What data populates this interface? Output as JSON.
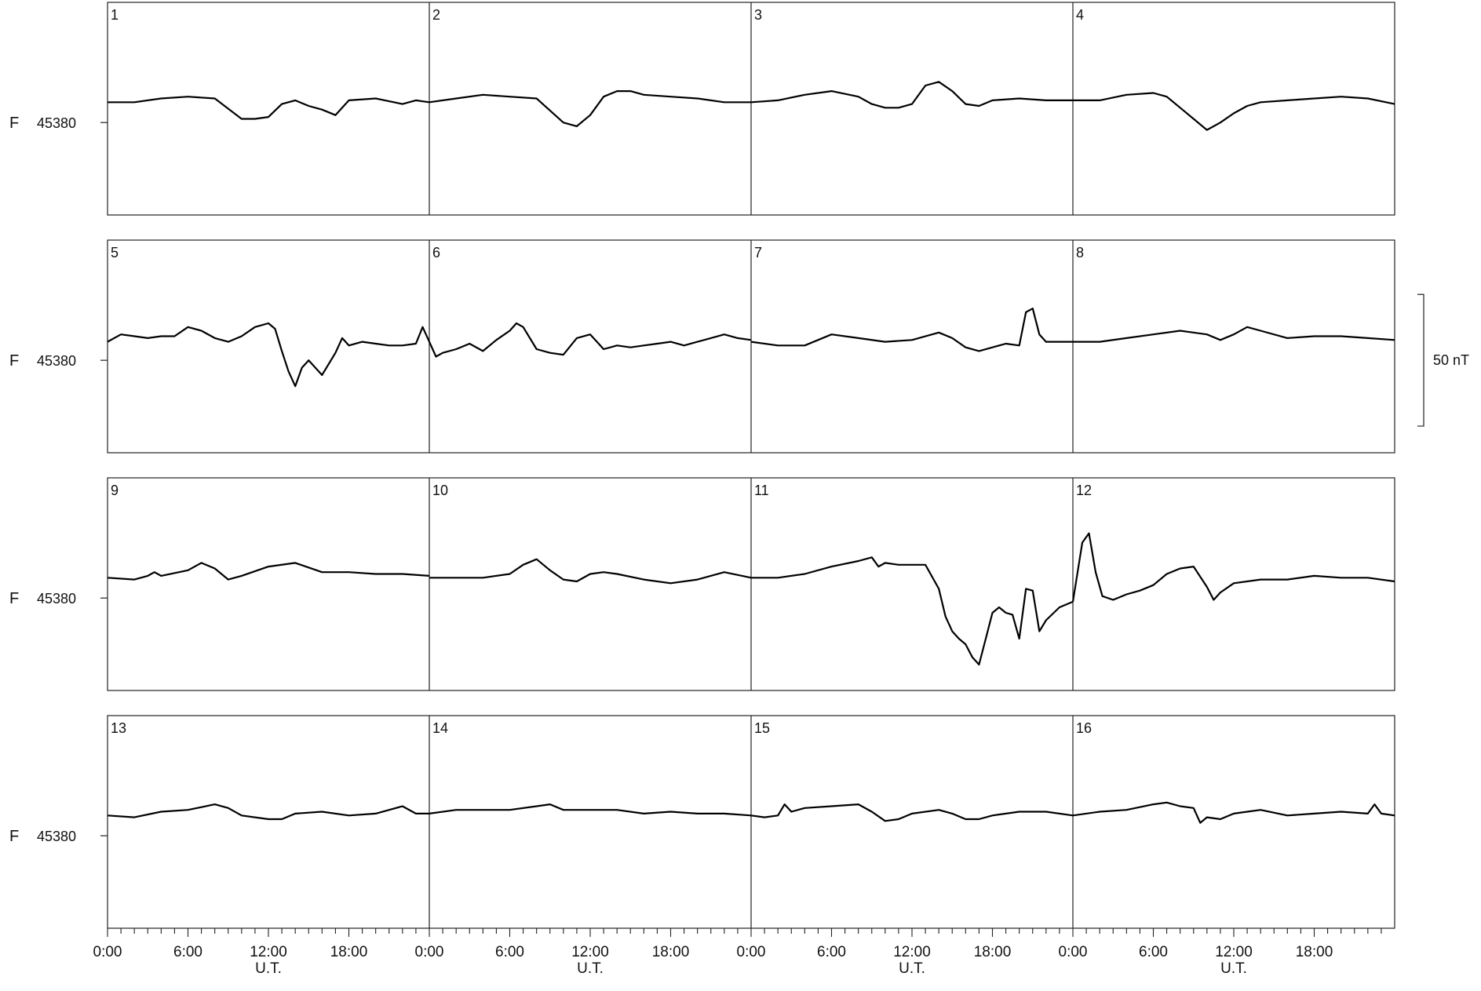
{
  "chart_data": {
    "type": "line",
    "layout": "small-multiples, 4 rows x 4 day-panels",
    "days_per_row": 4,
    "hours_per_day": 24,
    "row_label_letter": "F",
    "row_reference_value": "45380",
    "reference_value": 45380,
    "y_range_per_row": [
      45330,
      45445
    ],
    "scale_bar_label": "50 nT",
    "scale_bar_nT": 50,
    "x_tick_labels": [
      "0:00",
      "6:00",
      "12:00",
      "18:00"
    ],
    "x_axis_label": "U.T.",
    "minor_ticks_per_day": 24,
    "grid": false,
    "days": [
      {
        "label": "1",
        "row": 0,
        "hours": [
          0,
          2,
          4,
          6,
          8,
          10,
          11,
          12,
          13,
          14,
          15,
          16,
          17,
          18,
          20,
          22,
          23,
          24
        ],
        "values": [
          45391,
          45391,
          45393,
          45394,
          45393,
          45382,
          45382,
          45383,
          45390,
          45392,
          45389,
          45387,
          45384,
          45392,
          45393,
          45390,
          45392,
          45391
        ]
      },
      {
        "label": "2",
        "row": 0,
        "hours": [
          0,
          2,
          4,
          6,
          8,
          10,
          11,
          12,
          13,
          14,
          15,
          16,
          18,
          20,
          22,
          24
        ],
        "values": [
          45391,
          45393,
          45395,
          45394,
          45393,
          45380,
          45378,
          45384,
          45394,
          45397,
          45397,
          45395,
          45394,
          45393,
          45391,
          45391
        ]
      },
      {
        "label": "3",
        "row": 0,
        "hours": [
          0,
          2,
          4,
          6,
          8,
          9,
          10,
          11,
          12,
          13,
          14,
          15,
          16,
          17,
          18,
          20,
          22,
          24
        ],
        "values": [
          45391,
          45392,
          45395,
          45397,
          45394,
          45390,
          45388,
          45388,
          45390,
          45400,
          45402,
          45397,
          45390,
          45389,
          45392,
          45393,
          45392,
          45392
        ]
      },
      {
        "label": "4",
        "row": 0,
        "hours": [
          0,
          2,
          4,
          6,
          7,
          8,
          9,
          10,
          11,
          12,
          13,
          14,
          16,
          18,
          20,
          22,
          24
        ],
        "values": [
          45392,
          45392,
          45395,
          45396,
          45394,
          45388,
          45382,
          45376,
          45380,
          45385,
          45389,
          45391,
          45392,
          45393,
          45394,
          45393,
          45390
        ]
      },
      {
        "label": "5",
        "row": 1,
        "hours": [
          0,
          1,
          2,
          3,
          4,
          5,
          6,
          7,
          8,
          9,
          10,
          11,
          12,
          12.5,
          13,
          13.5,
          14,
          14.2,
          14.5,
          15,
          16,
          17,
          17.5,
          18,
          19,
          20,
          21,
          22,
          23,
          23.5,
          24
        ],
        "values": [
          45390,
          45394,
          45393,
          45392,
          45393,
          45393,
          45398,
          45396,
          45392,
          45390,
          45393,
          45398,
          45400,
          45397,
          45385,
          45374,
          45366,
          45370,
          45376,
          45380,
          45372,
          45384,
          45392,
          45388,
          45390,
          45389,
          45388,
          45388,
          45389,
          45398,
          45390
        ]
      },
      {
        "label": "6",
        "row": 1,
        "hours": [
          0,
          0.5,
          1,
          2,
          3,
          4,
          5,
          6,
          6.5,
          7,
          8,
          9,
          10,
          11,
          12,
          13,
          14,
          15,
          16,
          17,
          18,
          19,
          20,
          21,
          22,
          23,
          24
        ],
        "values": [
          45390,
          45382,
          45384,
          45386,
          45389,
          45385,
          45391,
          45396,
          45400,
          45398,
          45386,
          45384,
          45383,
          45392,
          45394,
          45386,
          45388,
          45387,
          45388,
          45389,
          45390,
          45388,
          45390,
          45392,
          45394,
          45392,
          45391
        ]
      },
      {
        "label": "7",
        "row": 1,
        "hours": [
          0,
          2,
          4,
          6,
          8,
          10,
          12,
          14,
          15,
          16,
          17,
          18,
          19,
          20,
          20.5,
          21,
          21.5,
          22,
          24
        ],
        "values": [
          45390,
          45388,
          45388,
          45394,
          45392,
          45390,
          45391,
          45395,
          45392,
          45387,
          45385,
          45387,
          45389,
          45388,
          45406,
          45408,
          45394,
          45390,
          45390
        ]
      },
      {
        "label": "8",
        "row": 1,
        "hours": [
          0,
          2,
          4,
          6,
          8,
          10,
          11,
          12,
          13,
          14,
          16,
          18,
          20,
          22,
          24
        ],
        "values": [
          45390,
          45390,
          45392,
          45394,
          45396,
          45394,
          45391,
          45394,
          45398,
          45396,
          45392,
          45393,
          45393,
          45392,
          45391
        ]
      },
      {
        "label": "9",
        "row": 2,
        "hours": [
          0,
          2,
          3,
          3.5,
          4,
          6,
          7,
          8,
          9,
          10,
          12,
          14,
          16,
          18,
          20,
          22,
          24
        ],
        "values": [
          45391,
          45390,
          45392,
          45394,
          45392,
          45395,
          45399,
          45396,
          45390,
          45392,
          45397,
          45399,
          45394,
          45394,
          45393,
          45393,
          45392
        ]
      },
      {
        "label": "10",
        "row": 2,
        "hours": [
          0,
          2,
          4,
          6,
          7,
          8,
          9,
          10,
          11,
          12,
          13,
          14,
          16,
          18,
          20,
          22,
          24
        ],
        "values": [
          45391,
          45391,
          45391,
          45393,
          45398,
          45401,
          45395,
          45390,
          45389,
          45393,
          45394,
          45393,
          45390,
          45388,
          45390,
          45394,
          45391
        ]
      },
      {
        "label": "11",
        "row": 2,
        "hours": [
          0,
          2,
          4,
          6,
          8,
          9,
          9.5,
          10,
          11,
          12,
          13,
          14,
          14.5,
          15,
          15.5,
          16,
          16.5,
          17,
          17.5,
          18,
          18.5,
          19,
          19.5,
          20,
          20.5,
          21,
          21.5,
          22,
          23,
          24
        ],
        "values": [
          45391,
          45391,
          45393,
          45397,
          45400,
          45402,
          45397,
          45399,
          45398,
          45398,
          45398,
          45385,
          45370,
          45362,
          45358,
          45355,
          45348,
          45344,
          45358,
          45372,
          45375,
          45372,
          45371,
          45358,
          45385,
          45384,
          45362,
          45368,
          45375,
          45378
        ]
      },
      {
        "label": "12",
        "row": 2,
        "hours": [
          0,
          0.7,
          1.2,
          1.7,
          2.2,
          3,
          4,
          5,
          6,
          7,
          8,
          9,
          10,
          10.5,
          11,
          12,
          14,
          16,
          18,
          20,
          22,
          24
        ],
        "values": [
          45378,
          45410,
          45415,
          45394,
          45381,
          45379,
          45382,
          45384,
          45387,
          45393,
          45396,
          45397,
          45386,
          45379,
          45383,
          45388,
          45390,
          45390,
          45392,
          45391,
          45391,
          45389
        ]
      },
      {
        "label": "13",
        "row": 3,
        "hours": [
          0,
          2,
          4,
          6,
          8,
          9,
          10,
          12,
          13,
          14,
          16,
          18,
          20,
          21,
          22,
          23,
          24
        ],
        "values": [
          45391,
          45390,
          45393,
          45394,
          45397,
          45395,
          45391,
          45389,
          45389,
          45392,
          45393,
          45391,
          45392,
          45394,
          45396,
          45392,
          45392
        ]
      },
      {
        "label": "14",
        "row": 3,
        "hours": [
          0,
          2,
          4,
          6,
          8,
          9,
          10,
          12,
          14,
          16,
          18,
          20,
          22,
          24
        ],
        "values": [
          45392,
          45394,
          45394,
          45394,
          45396,
          45397,
          45394,
          45394,
          45394,
          45392,
          45393,
          45392,
          45392,
          45391
        ]
      },
      {
        "label": "15",
        "row": 3,
        "hours": [
          0,
          1,
          2,
          2.5,
          3,
          4,
          6,
          8,
          9,
          10,
          11,
          12,
          14,
          15,
          16,
          17,
          18,
          20,
          22,
          24
        ],
        "values": [
          45391,
          45390,
          45391,
          45397,
          45393,
          45395,
          45396,
          45397,
          45393,
          45388,
          45389,
          45392,
          45394,
          45392,
          45389,
          45389,
          45391,
          45393,
          45393,
          45391
        ]
      },
      {
        "label": "16",
        "row": 3,
        "hours": [
          0,
          2,
          4,
          6,
          7,
          8,
          9,
          9.5,
          10,
          11,
          12,
          13,
          14,
          16,
          18,
          20,
          22,
          22.5,
          23,
          24
        ],
        "values": [
          45391,
          45393,
          45394,
          45397,
          45398,
          45396,
          45395,
          45387,
          45390,
          45389,
          45392,
          45393,
          45394,
          45391,
          45392,
          45393,
          45392,
          45397,
          45392,
          45391
        ]
      }
    ]
  }
}
